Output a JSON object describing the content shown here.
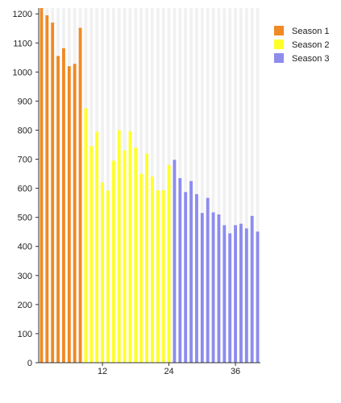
{
  "chart_data": {
    "type": "bar",
    "title": "",
    "xlabel": "",
    "ylabel": "",
    "x_ticks": [
      12,
      24,
      36
    ],
    "y_ticks": [
      0,
      100,
      200,
      300,
      400,
      500,
      600,
      700,
      800,
      900,
      1000,
      1100,
      1200
    ],
    "ylim": [
      0,
      1220
    ],
    "xlim": [
      0.5,
      40.5
    ],
    "grid": true,
    "legend_position": "right",
    "series": [
      {
        "name": "Season 1",
        "color": "#f08a24",
        "x": [
          1,
          2,
          3,
          4,
          5,
          6,
          7,
          8
        ],
        "values": [
          1220,
          1195,
          1170,
          1055,
          1082,
          1020,
          1028,
          1152
        ]
      },
      {
        "name": "Season 2",
        "color": "#ffff2a",
        "x": [
          9,
          10,
          11,
          12,
          13,
          14,
          15,
          16,
          17,
          18,
          19,
          20,
          21,
          22,
          23,
          24
        ],
        "values": [
          875,
          745,
          795,
          620,
          592,
          695,
          800,
          730,
          796,
          740,
          650,
          720,
          640,
          593,
          593,
          680
        ]
      },
      {
        "name": "Season 3",
        "color": "#8d8ced",
        "x": [
          25,
          26,
          27,
          28,
          29,
          30,
          31,
          32,
          33,
          34,
          35,
          36,
          37,
          38,
          39,
          40
        ],
        "values": [
          698,
          635,
          587,
          625,
          580,
          515,
          567,
          517,
          510,
          473,
          445,
          473,
          478,
          462,
          505,
          451
        ]
      }
    ]
  }
}
